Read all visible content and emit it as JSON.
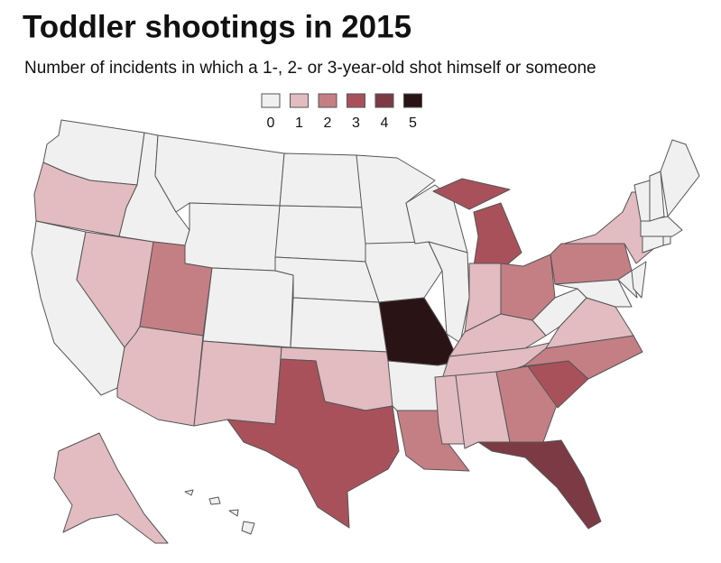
{
  "chart_data": {
    "type": "choropleth",
    "title": "Toddler shootings in 2015",
    "subtitle": "Number of incidents in which a 1-, 2- or 3-year-old shot himself or someone",
    "scale": [
      0,
      1,
      2,
      3,
      4,
      5
    ],
    "colors": [
      "#f0f0f0",
      "#e2bcc0",
      "#c47f85",
      "#a9515b",
      "#7c3a44",
      "#2a1315"
    ],
    "values": [
      0,
      1,
      0,
      1,
      0,
      0,
      0,
      2,
      0,
      1,
      1,
      0,
      0,
      0,
      0,
      1,
      3,
      0,
      0,
      5,
      0,
      2,
      0,
      0,
      3,
      1,
      2,
      1,
      1,
      1,
      1,
      2,
      4,
      3,
      2,
      1,
      0,
      2,
      1,
      0,
      0,
      0,
      0,
      0,
      0,
      0,
      0,
      0,
      1,
      0
    ]
  }
}
